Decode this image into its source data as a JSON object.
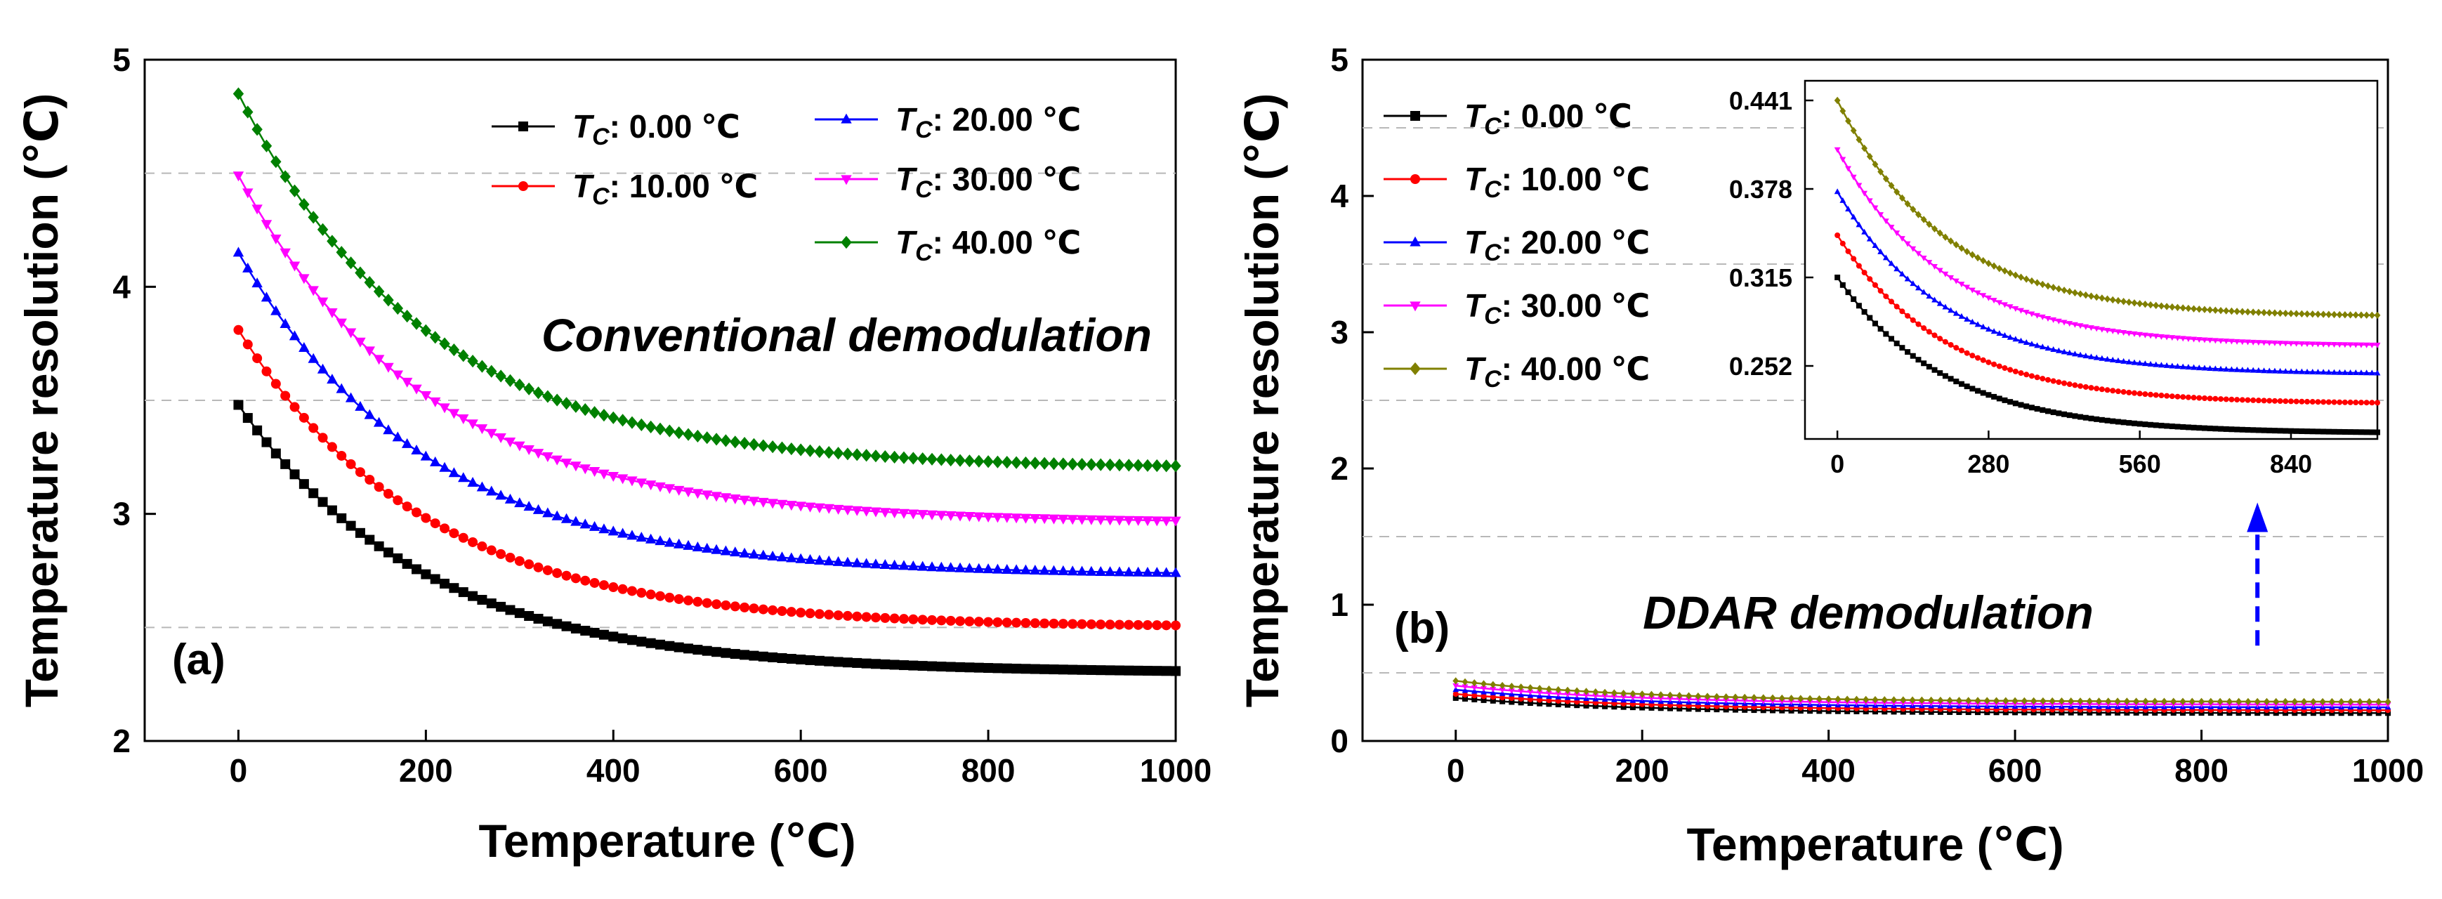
{
  "chart_data": [
    {
      "type": "line",
      "panel_label": "(a)",
      "annotation": "Conventional demodulation",
      "xlabel": "Temperature (℃)",
      "ylabel": "Temperature resolution (℃)",
      "xlim": [
        -100,
        1000
      ],
      "ylim": [
        2,
        5
      ],
      "x_ticks": [
        0,
        200,
        400,
        600,
        800,
        1000
      ],
      "y_ticks": [
        2,
        3,
        4,
        5
      ],
      "gridlines_y": [
        2.5,
        3.5,
        4.5
      ],
      "x_step": 10,
      "legend_position": "top-right",
      "legend_columns": 2,
      "series": [
        {
          "name": "T_C: 0.00 ℃",
          "legend_label": "0.00",
          "color": "#000000",
          "marker": "square",
          "start": 3.48,
          "end": 2.3,
          "decay": 200
        },
        {
          "name": "T_C: 10.00 ℃",
          "legend_label": "10.00",
          "color": "#ff0000",
          "marker": "circle",
          "start": 3.81,
          "end": 2.5,
          "decay": 200
        },
        {
          "name": "T_C: 20.00 ℃",
          "legend_label": "20.00",
          "color": "#0000ff",
          "marker": "triangle-up",
          "start": 4.15,
          "end": 2.73,
          "decay": 200
        },
        {
          "name": "T_C: 30.00 ℃",
          "legend_label": "30.00",
          "color": "#ff00ff",
          "marker": "triangle-down",
          "start": 4.49,
          "end": 2.96,
          "decay": 200
        },
        {
          "name": "T_C: 40.00 ℃",
          "legend_label": "40.00",
          "color": "#008000",
          "marker": "diamond",
          "start": 4.85,
          "end": 3.2,
          "decay": 200
        }
      ]
    },
    {
      "type": "line",
      "panel_label": "(b)",
      "annotation": "DDAR demodulation",
      "xlabel": "Temperature (℃)",
      "ylabel": "Temperature resolution (℃)",
      "xlim": [
        -100,
        1000
      ],
      "ylim": [
        0,
        5
      ],
      "x_ticks": [
        0,
        200,
        400,
        600,
        800,
        1000
      ],
      "y_ticks": [
        0,
        1,
        2,
        3,
        4,
        5
      ],
      "gridlines_y": [
        0.5,
        1.5,
        2.5,
        3.5,
        4.5
      ],
      "x_step": 10,
      "legend_position": "top-left",
      "legend_columns": 1,
      "series": [
        {
          "name": "T_C: 0.00 ℃",
          "legend_label": "0.00",
          "color": "#000000",
          "marker": "square",
          "start": 0.315,
          "end": 0.204,
          "decay": 200
        },
        {
          "name": "T_C: 10.00 ℃",
          "legend_label": "10.00",
          "color": "#ff0000",
          "marker": "circle",
          "start": 0.345,
          "end": 0.225,
          "decay": 200
        },
        {
          "name": "T_C: 20.00 ℃",
          "legend_label": "20.00",
          "color": "#0000ff",
          "marker": "triangle-up",
          "start": 0.376,
          "end": 0.246,
          "decay": 200
        },
        {
          "name": "T_C: 30.00 ℃",
          "legend_label": "30.00",
          "color": "#ff00ff",
          "marker": "triangle-down",
          "start": 0.406,
          "end": 0.266,
          "decay": 200
        },
        {
          "name": "T_C: 40.00 ℃",
          "legend_label": "40.00",
          "color": "#808000",
          "marker": "diamond",
          "start": 0.441,
          "end": 0.287,
          "decay": 200
        }
      ],
      "inset": {
        "xlim": [
          -60,
          1000
        ],
        "ylim": [
          0.2,
          0.455
        ],
        "x_ticks": [
          0,
          280,
          560,
          840
        ],
        "y_ticks": [
          0.252,
          0.315,
          0.378,
          0.441
        ],
        "y_tick_labels": [
          "0.252",
          "0.315",
          "0.378",
          "0.441"
        ],
        "x_step": 10
      },
      "arrow": {
        "x": 860,
        "from_y": 0.7,
        "to_y": 1.75,
        "color": "#0000ff",
        "style": "dashed"
      }
    }
  ]
}
